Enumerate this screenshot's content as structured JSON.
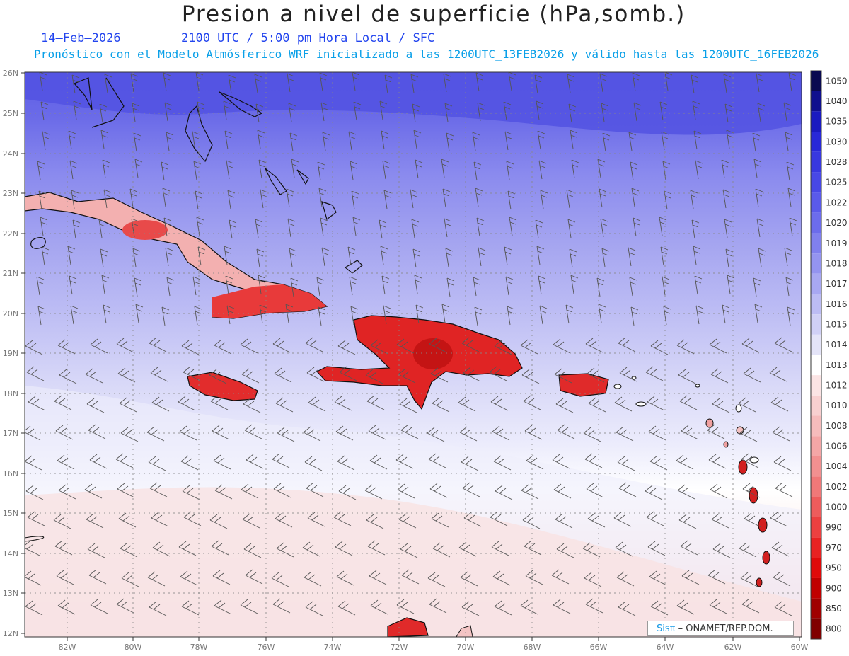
{
  "title": "Presion a nivel de superficie (hPa,somb.)",
  "date": "14–Feb–2026",
  "time_line": "2100 UTC / 5:00 pm Hora Local / SFC",
  "forecast_line": "Pronóstico con el Modelo Atmósferico WRF inicializado a las 1200UTC_13FEB2026 y válido hasta las  1200UTC_16FEB2026",
  "credit": {
    "brand": "Sisπ",
    "rest": "– ONAMET/REP.DOM."
  },
  "map": {
    "lat_labels": [
      "26N",
      "25N",
      "24N",
      "23N",
      "22N",
      "21N",
      "20N",
      "19N",
      "18N",
      "17N",
      "16N",
      "15N",
      "14N",
      "13N",
      "12N"
    ],
    "lon_labels": [
      "82W",
      "80W",
      "78W",
      "76W",
      "74W",
      "72W",
      "70W",
      "68W",
      "66W",
      "64W",
      "62W",
      "60W"
    ]
  },
  "legend": {
    "levels": [
      "1050",
      "1040",
      "1035",
      "1030",
      "1028",
      "1025",
      "1022",
      "1020",
      "1019",
      "1018",
      "1017",
      "1016",
      "1015",
      "1014",
      "1013",
      "1012",
      "1010",
      "1008",
      "1006",
      "1004",
      "1002",
      "1000",
      "990",
      "970",
      "950",
      "900",
      "850",
      "800"
    ],
    "colors": [
      "#0a0a50",
      "#10108e",
      "#1a1ac0",
      "#2828d8",
      "#3838e0",
      "#4848e6",
      "#5a5aea",
      "#6c6cec",
      "#8080ee",
      "#9494f0",
      "#a8a8f2",
      "#bcbcf4",
      "#d0d0f6",
      "#e4e4f8",
      "#ffffff",
      "#fbe4e4",
      "#f8d0d0",
      "#f6bcbc",
      "#f4a6a6",
      "#f29090",
      "#f07878",
      "#ee5c5c",
      "#ec4040",
      "#e82222",
      "#e00a0a",
      "#c00000",
      "#a00000",
      "#800000"
    ]
  }
}
